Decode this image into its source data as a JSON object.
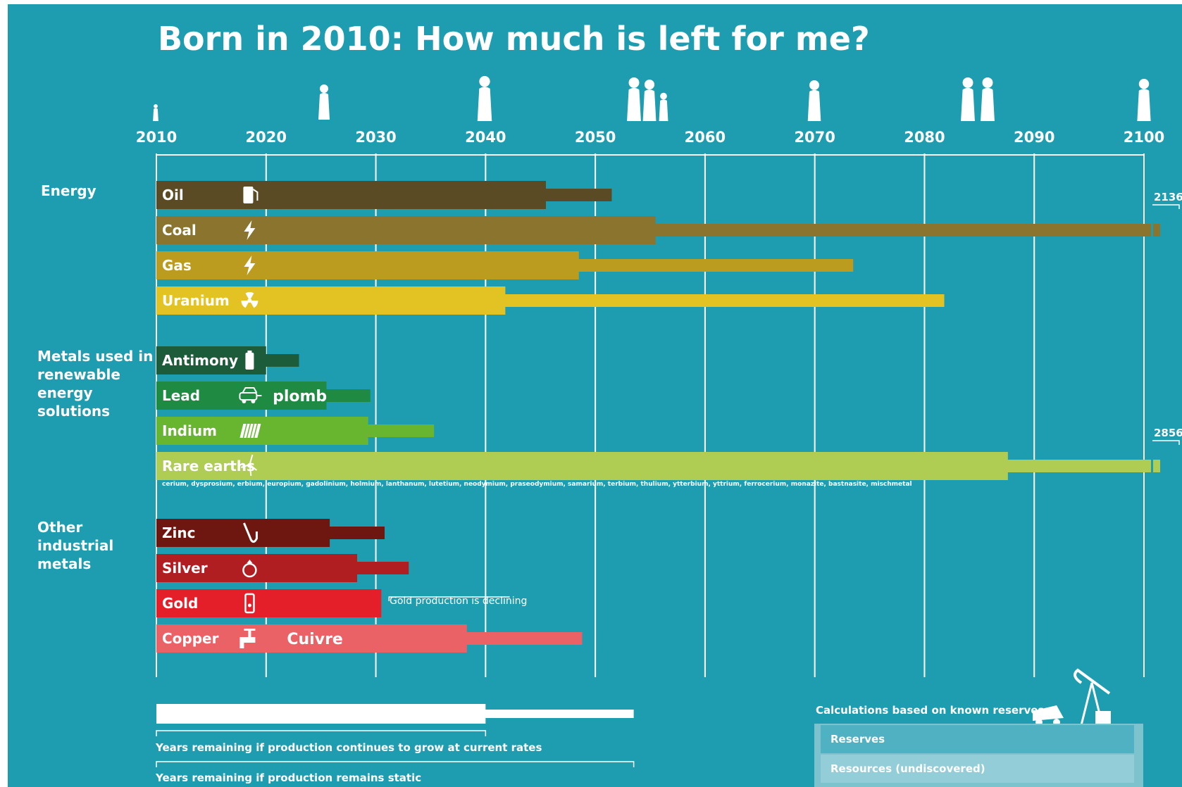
{
  "title": "Born in 2010: How much is left for me?",
  "chart_data": {
    "type": "bar",
    "subtype": "horizontal-range",
    "x_axis": {
      "min": 2010,
      "max": 2100,
      "ticks": [
        2010,
        2020,
        2030,
        2040,
        2050,
        2060,
        2070,
        2080,
        2090,
        2100
      ]
    },
    "life_stage_icons": [
      "baby-icon",
      "child-jumping-icon",
      "bride-couple-icon",
      "family-icon",
      "elderly-person-icon",
      "elderly-couple-icon",
      "wheelchair-icon"
    ],
    "groups": [
      {
        "label": "Energy",
        "items": [
          {
            "name": "Oil",
            "icon": "fuel-pump-icon",
            "growing": 2045.5,
            "static": 2051.5,
            "color": "#5b4b25"
          },
          {
            "name": "Coal",
            "icon": "lightning-icon",
            "growing": 2055.5,
            "static": 2136,
            "overflow_label": "2136",
            "color": "#8b742e"
          },
          {
            "name": "Gas",
            "icon": "lightning-icon",
            "growing": 2048.5,
            "static": 2073.5,
            "color": "#bc9c1f"
          },
          {
            "name": "Uranium",
            "icon": "radiation-icon",
            "growing": 2041.8,
            "static": 2081.8,
            "color": "#e3c323"
          }
        ]
      },
      {
        "label": "Metals used in renewable energy solutions",
        "items": [
          {
            "name": "Antimony",
            "icon": "battery-icon",
            "growing": 2020,
            "static": 2023,
            "color": "#1d5c3a"
          },
          {
            "name": "Lead",
            "icon": "car-icon",
            "growing": 2025.5,
            "static": 2029.5,
            "note": "plomb",
            "color": "#1e8a42"
          },
          {
            "name": "Indium",
            "icon": "solar-panel-icon",
            "growing": 2029.3,
            "static": 2035.3,
            "color": "#68b52f"
          },
          {
            "name": "Rare earths",
            "icon": "wind-turbine-icon",
            "growing": 2087.6,
            "static": 2856,
            "overflow_label": "2856",
            "color": "#aecd52",
            "elements": "cerium, dysprosium, erbium, europium, gadolinium, holmium, lanthanum, lutetium, neodymium, praseodymium, samarium, terbium, thulium, ytterbium, yttrium, ferrocerium, monazite, bastnasite, mischmetal"
          }
        ]
      },
      {
        "label": "Other industrial metals",
        "items": [
          {
            "name": "Zinc",
            "icon": "saxophone-icon",
            "growing": 2025.8,
            "static": 2030.8,
            "color": "#6e1711"
          },
          {
            "name": "Silver",
            "icon": "ring-icon",
            "growing": 2028.3,
            "static": 2033,
            "color": "#b01e22"
          },
          {
            "name": "Gold",
            "icon": "mobile-phone-icon",
            "growing": 2030.5,
            "static": null,
            "note": "Gold production is declining",
            "color": "#e51f2a"
          },
          {
            "name": "Copper",
            "icon": "tap-icon",
            "growing": 2038.3,
            "static": 2048.8,
            "note": "Cuivre",
            "color": "#ea6266"
          }
        ]
      }
    ],
    "legend": {
      "growing_label": "Years remaining if production continues to grow at current rates",
      "static_label": "Years remaining if production remains static"
    }
  },
  "reserves": {
    "caption": "Calculations based on known reserves:",
    "reserves_label": "Reserves",
    "resources_label": "Resources (undiscovered)",
    "icons": [
      "mining-truck-icon",
      "oil-pump-icon"
    ]
  }
}
